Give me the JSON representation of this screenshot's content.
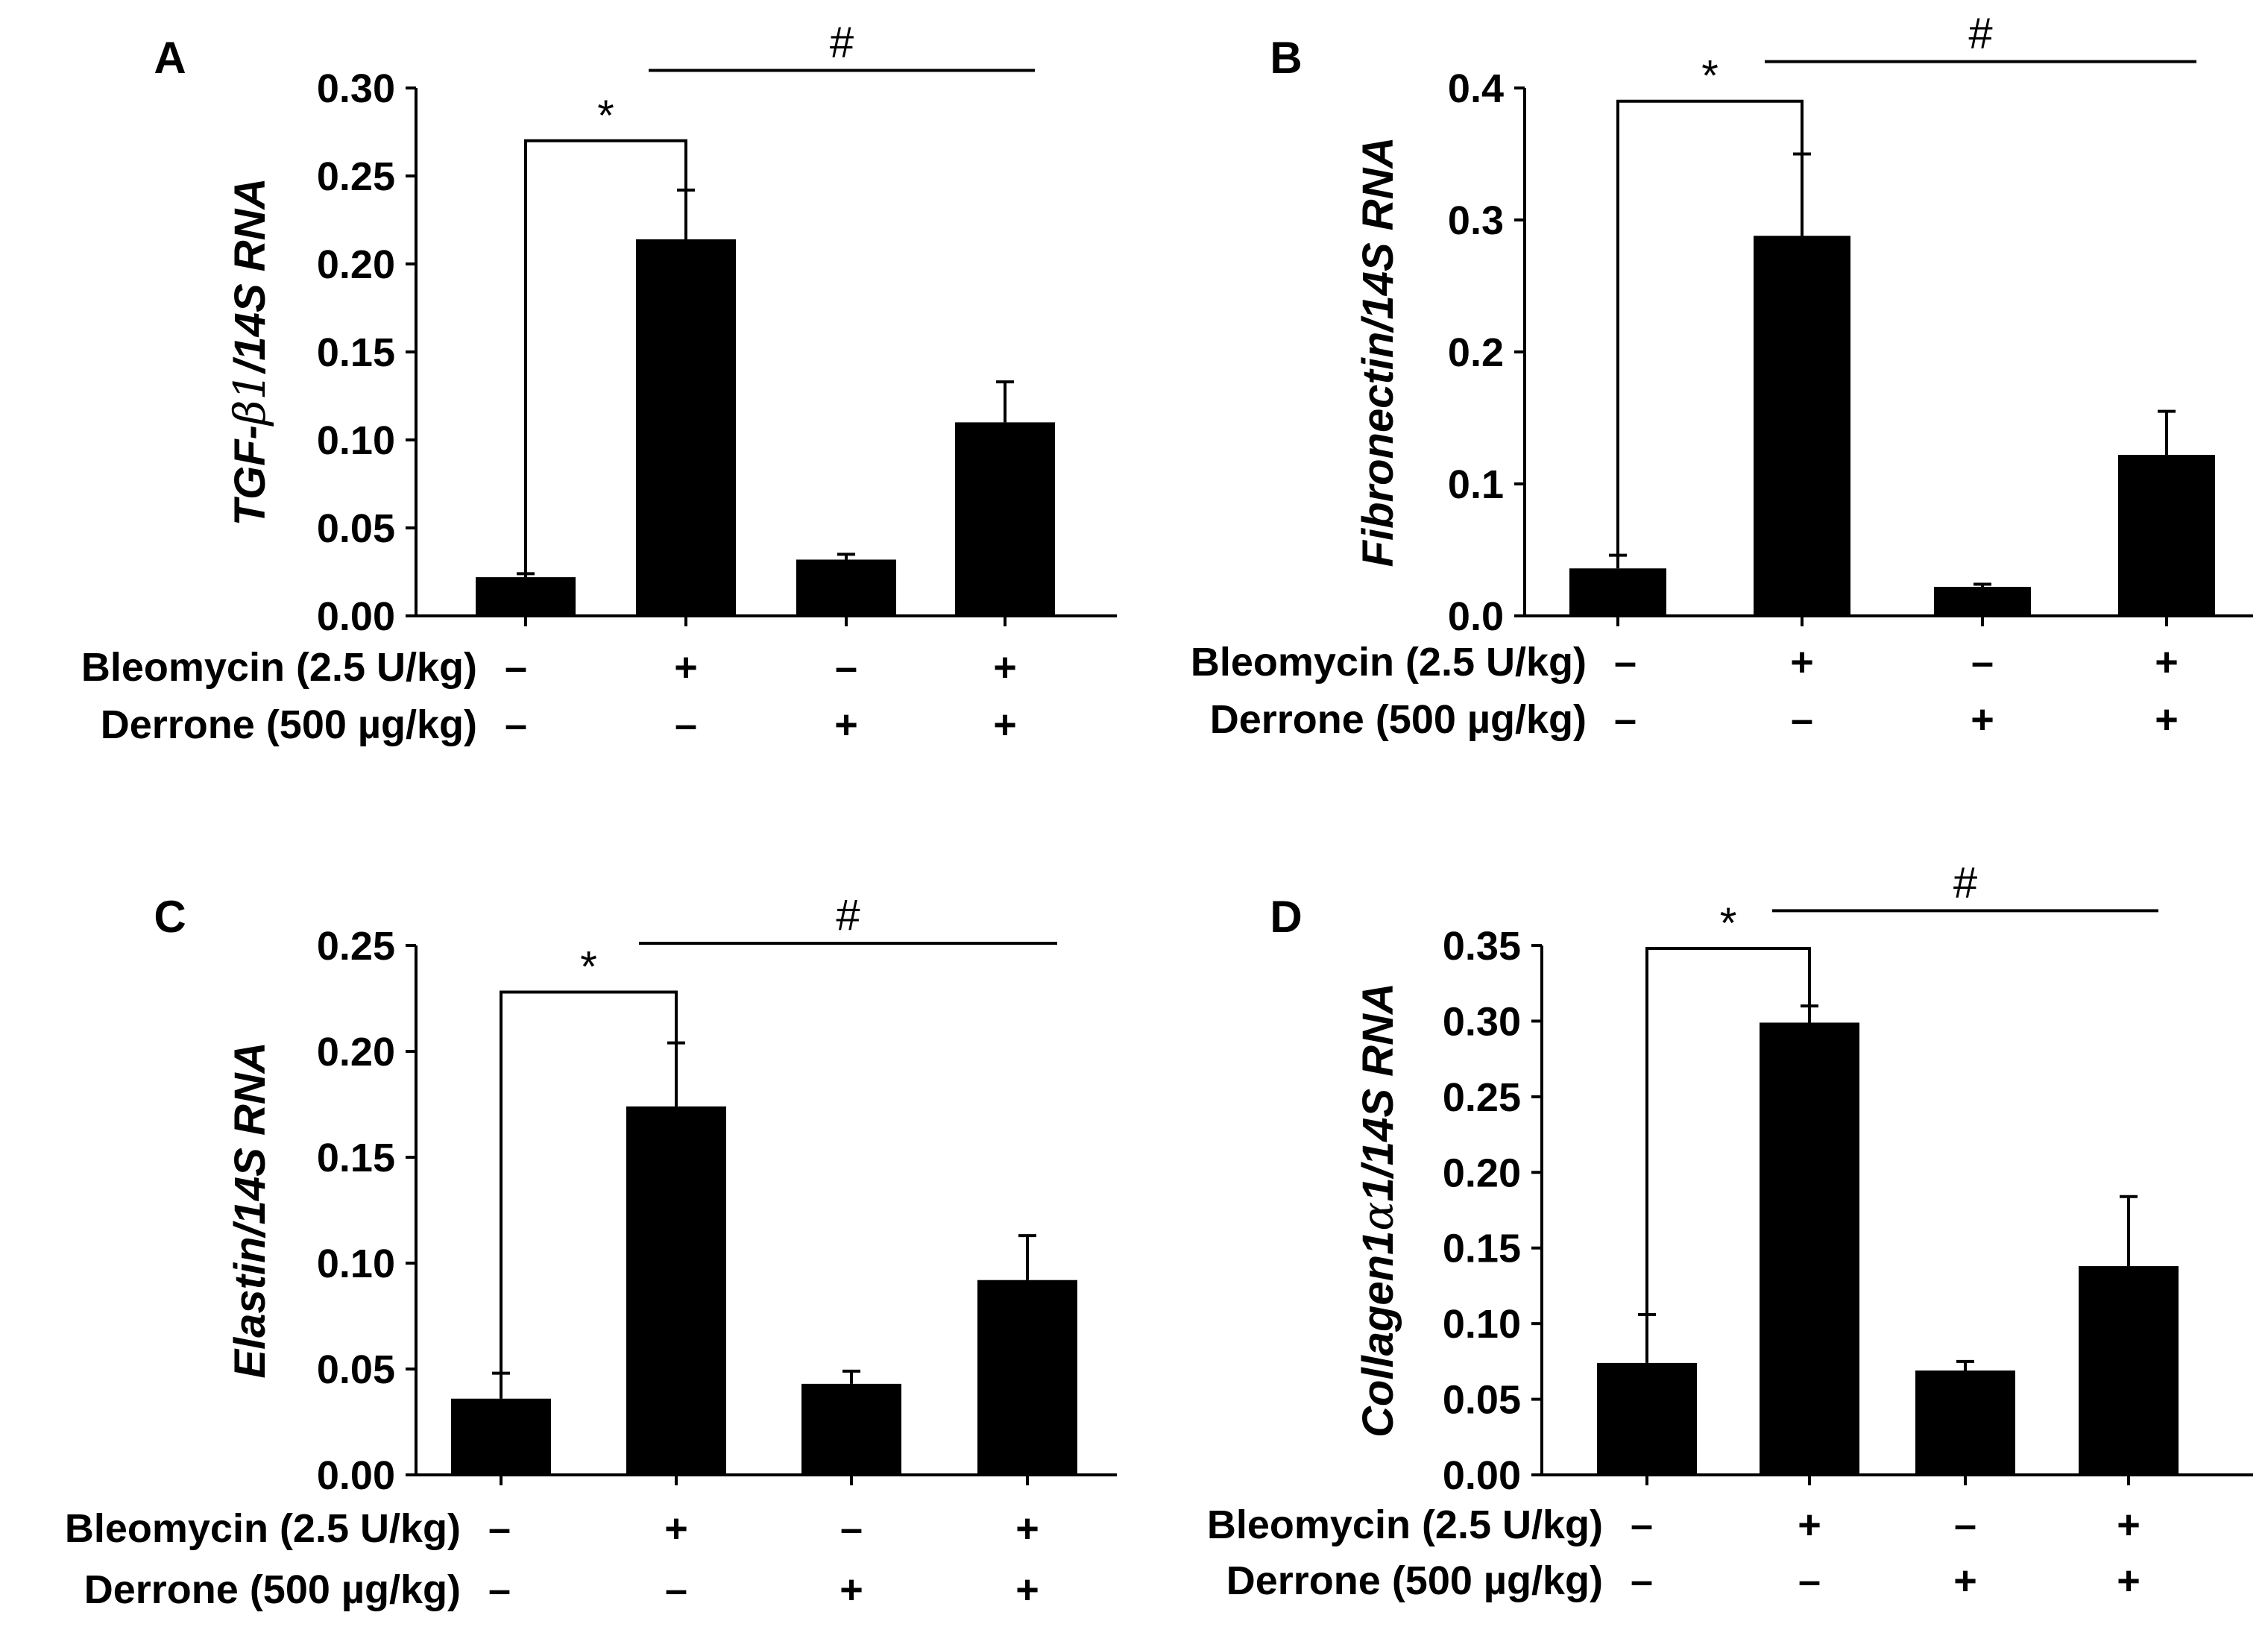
{
  "figure": {
    "row_labels": {
      "bleomycin": "Bleomycin (2.5 U/kg)",
      "derrone": "Derrone (500 µg/kg)"
    },
    "colors": {
      "bar": "#000000",
      "axis": "#000000",
      "background": "#ffffff"
    }
  },
  "chart_data": [
    {
      "panel": "A",
      "type": "bar",
      "ylabel_parts": [
        "TGF-",
        "β1",
        "/14S RNA"
      ],
      "ylim": [
        0,
        0.3
      ],
      "yticks": [
        "0.00",
        "0.05",
        "0.10",
        "0.15",
        "0.20",
        "0.25",
        "0.30"
      ],
      "bleomycin": [
        "–",
        "+",
        "–",
        "+"
      ],
      "derrone": [
        "–",
        "–",
        "+",
        "+"
      ],
      "values": [
        0.022,
        0.214,
        0.032,
        0.11
      ],
      "errors": [
        0.002,
        0.028,
        0.003,
        0.023
      ],
      "significance": [
        {
          "symbol": "*",
          "type": "bracket",
          "from": 0,
          "to": 1,
          "level": 0.27
        },
        {
          "symbol": "#",
          "type": "line",
          "from": 1,
          "to": 3,
          "level": 0.31
        }
      ]
    },
    {
      "panel": "B",
      "type": "bar",
      "ylabel_parts": [
        "Fibronectin/14S RNA"
      ],
      "ylim": [
        0,
        0.4
      ],
      "yticks": [
        "0.0",
        "0.1",
        "0.2",
        "0.3",
        "0.4"
      ],
      "bleomycin": [
        "–",
        "+",
        "–",
        "+"
      ],
      "derrone": [
        "–",
        "–",
        "+",
        "+"
      ],
      "values": [
        0.036,
        0.288,
        0.022,
        0.122
      ],
      "errors": [
        0.01,
        0.062,
        0.002,
        0.033
      ],
      "significance": [
        {
          "symbol": "*",
          "type": "bracket",
          "from": 0,
          "to": 1,
          "level": 0.39
        },
        {
          "symbol": "#",
          "type": "line",
          "from": 1,
          "to": 3,
          "level": 0.42
        }
      ]
    },
    {
      "panel": "C",
      "type": "bar",
      "ylabel_parts": [
        "Elastin/14S RNA"
      ],
      "ylim": [
        0,
        0.25
      ],
      "yticks": [
        "0.00",
        "0.05",
        "0.10",
        "0.15",
        "0.20",
        "0.25"
      ],
      "bleomycin": [
        "–",
        "+",
        "–",
        "+"
      ],
      "derrone": [
        "–",
        "–",
        "+",
        "+"
      ],
      "values": [
        0.036,
        0.174,
        0.043,
        0.092
      ],
      "errors": [
        0.012,
        0.03,
        0.006,
        0.021
      ],
      "significance": [
        {
          "symbol": "*",
          "type": "bracket",
          "from": 0,
          "to": 1,
          "level": 0.228
        },
        {
          "symbol": "#",
          "type": "line",
          "from": 1,
          "to": 3,
          "level": 0.251
        }
      ]
    },
    {
      "panel": "D",
      "type": "bar",
      "ylabel_parts": [
        "Collagen1",
        "α",
        "1/14S RNA"
      ],
      "ylim": [
        0,
        0.35
      ],
      "yticks": [
        "0.00",
        "0.05",
        "0.10",
        "0.15",
        "0.20",
        "0.25",
        "0.30",
        "0.35"
      ],
      "bleomycin": [
        "–",
        "+",
        "–",
        "+"
      ],
      "derrone": [
        "–",
        "–",
        "+",
        "+"
      ],
      "values": [
        0.074,
        0.299,
        0.069,
        0.138
      ],
      "errors": [
        0.032,
        0.011,
        0.006,
        0.046
      ],
      "significance": [
        {
          "symbol": "*",
          "type": "bracket",
          "from": 0,
          "to": 1,
          "level": 0.348
        },
        {
          "symbol": "#",
          "type": "line",
          "from": 1,
          "to": 3,
          "level": 0.373
        }
      ]
    }
  ]
}
